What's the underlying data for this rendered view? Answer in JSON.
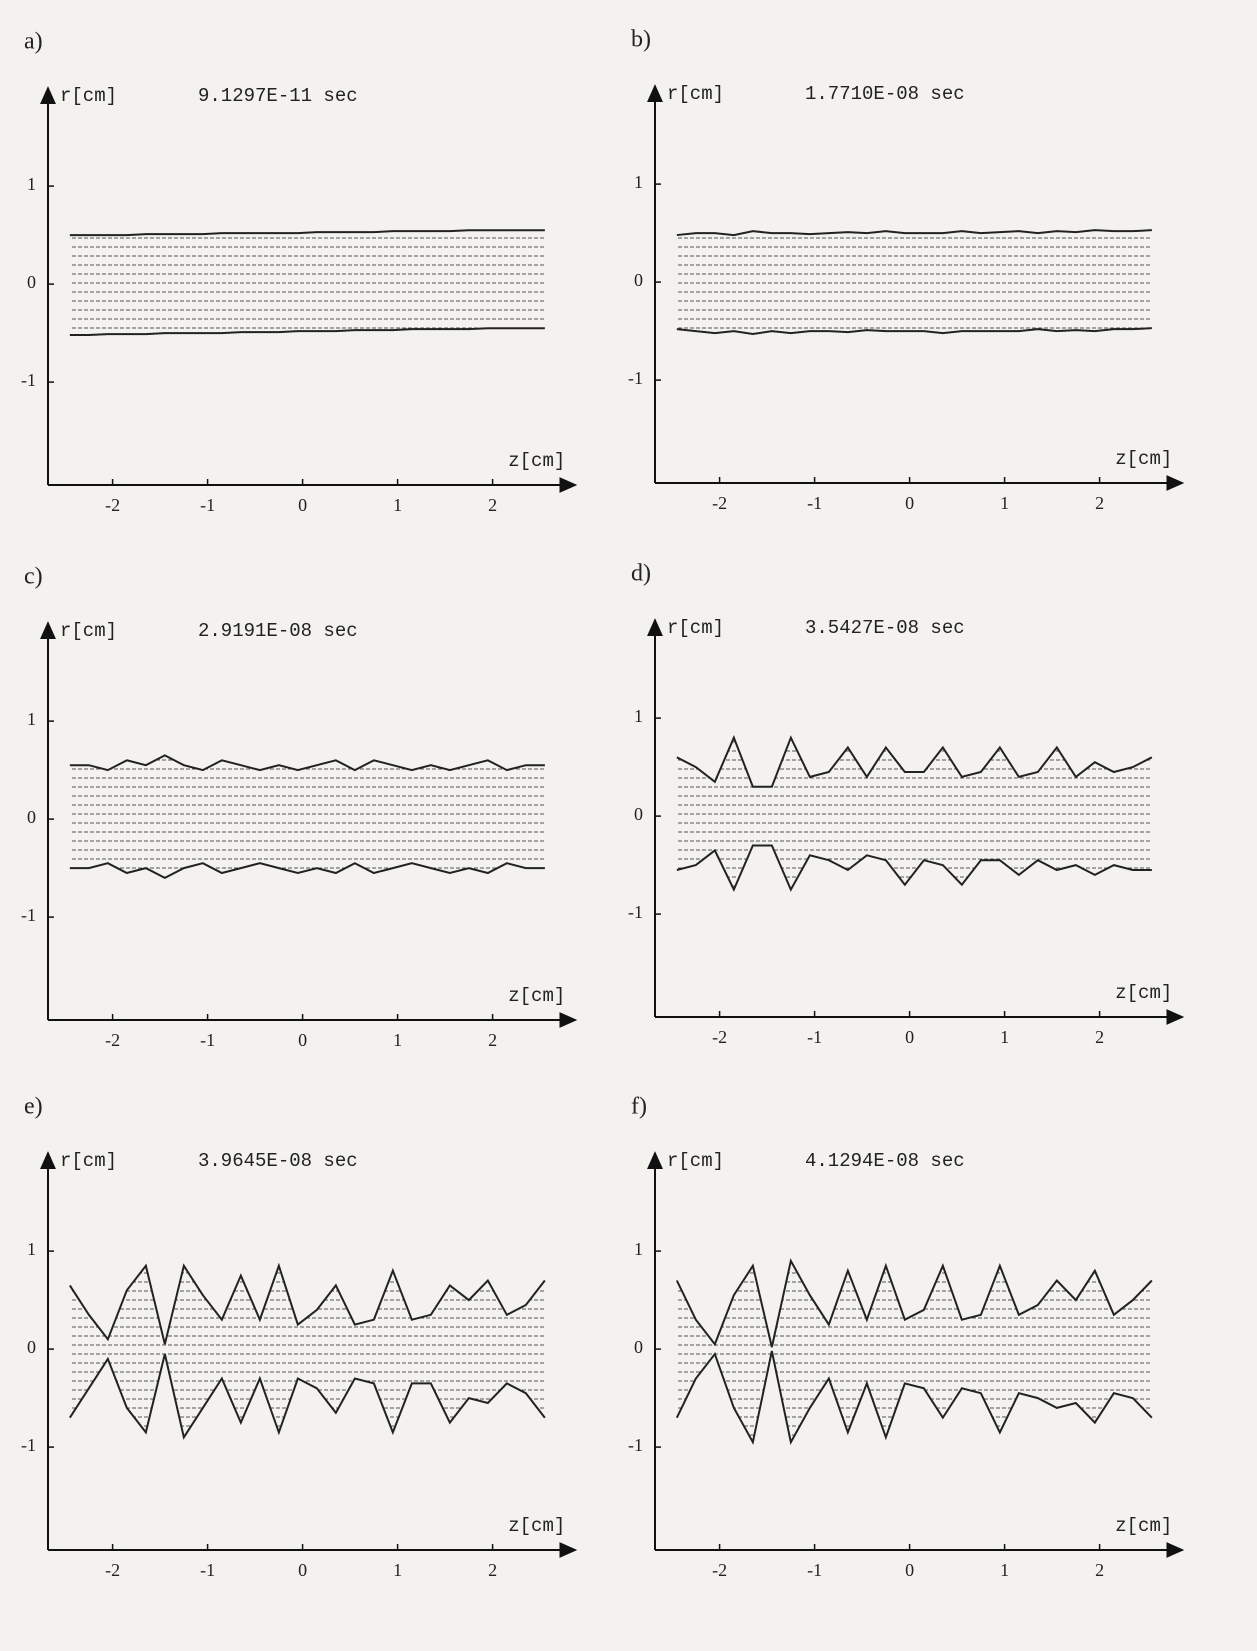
{
  "chart_data": [
    {
      "type": "area",
      "panel_label": "a)",
      "title": "9.1297E-11 sec",
      "y_label": "r[cm]",
      "x_label": "z[cm]",
      "x": [
        -2.45,
        -2.25,
        -2.05,
        -1.85,
        -1.65,
        -1.45,
        -1.25,
        -1.05,
        -0.85,
        -0.65,
        -0.45,
        -0.25,
        -0.05,
        0.15,
        0.35,
        0.55,
        0.75,
        0.95,
        1.15,
        1.35,
        1.55,
        1.75,
        1.95,
        2.15,
        2.35,
        2.55
      ],
      "series": [
        {
          "color": "#222222",
          "values": [
            0.5,
            0.5,
            0.5,
            0.5,
            0.51,
            0.51,
            0.51,
            0.51,
            0.52,
            0.52,
            0.52,
            0.52,
            0.52,
            0.53,
            0.53,
            0.53,
            0.53,
            0.54,
            0.54,
            0.54,
            0.54,
            0.55,
            0.55,
            0.55,
            0.55,
            0.55
          ]
        },
        {
          "color": "#222222",
          "values": [
            -0.52,
            -0.52,
            -0.51,
            -0.51,
            -0.51,
            -0.5,
            -0.5,
            -0.5,
            -0.5,
            -0.49,
            -0.49,
            -0.49,
            -0.48,
            -0.48,
            -0.48,
            -0.47,
            -0.47,
            -0.47,
            -0.46,
            -0.46,
            -0.46,
            -0.46,
            -0.45,
            -0.45,
            -0.45,
            -0.45
          ]
        }
      ],
      "xlim": [
        -2.68,
        2.87
      ],
      "ylim": [
        -2.05,
        2.0
      ],
      "xticks": [
        -2,
        -1,
        0,
        1,
        2
      ],
      "yticks": [
        -1,
        0,
        1
      ]
    },
    {
      "type": "area",
      "panel_label": "b)",
      "title": "1.7710E-08 sec",
      "y_label": "r[cm]",
      "x_label": "z[cm]",
      "x": [
        -2.45,
        -2.25,
        -2.05,
        -1.85,
        -1.65,
        -1.45,
        -1.25,
        -1.05,
        -0.85,
        -0.65,
        -0.45,
        -0.25,
        -0.05,
        0.15,
        0.35,
        0.55,
        0.75,
        0.95,
        1.15,
        1.35,
        1.55,
        1.75,
        1.95,
        2.15,
        2.35,
        2.55
      ],
      "series": [
        {
          "color": "#222222",
          "values": [
            0.48,
            0.5,
            0.5,
            0.48,
            0.52,
            0.5,
            0.5,
            0.49,
            0.5,
            0.51,
            0.5,
            0.52,
            0.5,
            0.5,
            0.5,
            0.52,
            0.5,
            0.51,
            0.52,
            0.5,
            0.52,
            0.51,
            0.53,
            0.52,
            0.52,
            0.53
          ]
        },
        {
          "color": "#222222",
          "values": [
            -0.48,
            -0.5,
            -0.52,
            -0.5,
            -0.53,
            -0.5,
            -0.52,
            -0.5,
            -0.5,
            -0.51,
            -0.49,
            -0.5,
            -0.5,
            -0.5,
            -0.52,
            -0.5,
            -0.5,
            -0.5,
            -0.5,
            -0.48,
            -0.5,
            -0.49,
            -0.5,
            -0.48,
            -0.48,
            -0.47
          ]
        }
      ],
      "xlim": [
        -2.68,
        2.87
      ],
      "ylim": [
        -2.05,
        2.0
      ],
      "xticks": [
        -2,
        -1,
        0,
        1,
        2
      ],
      "yticks": [
        -1,
        0,
        1
      ]
    },
    {
      "type": "area",
      "panel_label": "c)",
      "title": "2.9191E-08 sec",
      "y_label": "r[cm]",
      "x_label": "z[cm]",
      "x": [
        -2.45,
        -2.25,
        -2.05,
        -1.85,
        -1.65,
        -1.45,
        -1.25,
        -1.05,
        -0.85,
        -0.65,
        -0.45,
        -0.25,
        -0.05,
        0.15,
        0.35,
        0.55,
        0.75,
        0.95,
        1.15,
        1.35,
        1.55,
        1.75,
        1.95,
        2.15,
        2.35,
        2.55
      ],
      "series": [
        {
          "color": "#222222",
          "values": [
            0.55,
            0.55,
            0.5,
            0.6,
            0.55,
            0.65,
            0.55,
            0.5,
            0.6,
            0.55,
            0.5,
            0.55,
            0.5,
            0.55,
            0.6,
            0.5,
            0.6,
            0.55,
            0.5,
            0.55,
            0.5,
            0.55,
            0.6,
            0.5,
            0.55,
            0.55
          ]
        },
        {
          "color": "#222222",
          "values": [
            -0.5,
            -0.5,
            -0.45,
            -0.55,
            -0.5,
            -0.6,
            -0.5,
            -0.45,
            -0.55,
            -0.5,
            -0.45,
            -0.5,
            -0.55,
            -0.5,
            -0.55,
            -0.45,
            -0.55,
            -0.5,
            -0.45,
            -0.5,
            -0.55,
            -0.5,
            -0.55,
            -0.45,
            -0.5,
            -0.5
          ]
        }
      ],
      "xlim": [
        -2.68,
        2.87
      ],
      "ylim": [
        -2.05,
        2.0
      ],
      "xticks": [
        -2,
        -1,
        0,
        1,
        2
      ],
      "yticks": [
        -1,
        0,
        1
      ]
    },
    {
      "type": "area",
      "panel_label": "d)",
      "title": "3.5427E-08 sec",
      "y_label": "r[cm]",
      "x_label": "z[cm]",
      "x": [
        -2.45,
        -2.25,
        -2.05,
        -1.85,
        -1.65,
        -1.45,
        -1.25,
        -1.05,
        -0.85,
        -0.65,
        -0.45,
        -0.25,
        -0.05,
        0.15,
        0.35,
        0.55,
        0.75,
        0.95,
        1.15,
        1.35,
        1.55,
        1.75,
        1.95,
        2.15,
        2.35,
        2.55
      ],
      "series": [
        {
          "color": "#222222",
          "values": [
            0.6,
            0.5,
            0.35,
            0.8,
            0.3,
            0.3,
            0.8,
            0.4,
            0.45,
            0.7,
            0.4,
            0.7,
            0.45,
            0.45,
            0.7,
            0.4,
            0.45,
            0.7,
            0.4,
            0.45,
            0.7,
            0.4,
            0.55,
            0.45,
            0.5,
            0.6
          ]
        },
        {
          "color": "#222222",
          "values": [
            -0.55,
            -0.5,
            -0.35,
            -0.75,
            -0.3,
            -0.3,
            -0.75,
            -0.4,
            -0.45,
            -0.55,
            -0.4,
            -0.45,
            -0.7,
            -0.45,
            -0.5,
            -0.7,
            -0.45,
            -0.45,
            -0.6,
            -0.45,
            -0.55,
            -0.5,
            -0.6,
            -0.5,
            -0.55,
            -0.55
          ]
        }
      ],
      "xlim": [
        -2.68,
        2.87
      ],
      "ylim": [
        -2.05,
        2.0
      ],
      "xticks": [
        -2,
        -1,
        0,
        1,
        2
      ],
      "yticks": [
        -1,
        0,
        1
      ]
    },
    {
      "type": "area",
      "panel_label": "e)",
      "title": "3.9645E-08 sec",
      "y_label": "r[cm]",
      "x_label": "z[cm]",
      "x": [
        -2.45,
        -2.25,
        -2.05,
        -1.85,
        -1.65,
        -1.45,
        -1.25,
        -1.05,
        -0.85,
        -0.65,
        -0.45,
        -0.25,
        -0.05,
        0.15,
        0.35,
        0.55,
        0.75,
        0.95,
        1.15,
        1.35,
        1.55,
        1.75,
        1.95,
        2.15,
        2.35,
        2.55
      ],
      "series": [
        {
          "color": "#222222",
          "values": [
            0.65,
            0.35,
            0.1,
            0.6,
            0.85,
            0.05,
            0.85,
            0.55,
            0.3,
            0.75,
            0.3,
            0.85,
            0.25,
            0.4,
            0.65,
            0.25,
            0.3,
            0.8,
            0.3,
            0.35,
            0.65,
            0.5,
            0.7,
            0.35,
            0.45,
            0.7
          ]
        },
        {
          "color": "#222222",
          "values": [
            -0.7,
            -0.4,
            -0.1,
            -0.6,
            -0.85,
            -0.05,
            -0.9,
            -0.6,
            -0.3,
            -0.75,
            -0.3,
            -0.85,
            -0.3,
            -0.4,
            -0.65,
            -0.3,
            -0.35,
            -0.85,
            -0.35,
            -0.35,
            -0.75,
            -0.5,
            -0.55,
            -0.35,
            -0.45,
            -0.7
          ]
        }
      ],
      "xlim": [
        -2.68,
        2.87
      ],
      "ylim": [
        -2.05,
        2.0
      ],
      "xticks": [
        -2,
        -1,
        0,
        1,
        2
      ],
      "yticks": [
        -1,
        0,
        1
      ]
    },
    {
      "type": "area",
      "panel_label": "f)",
      "title": "4.1294E-08 sec",
      "y_label": "r[cm]",
      "x_label": "z[cm]",
      "x": [
        -2.45,
        -2.25,
        -2.05,
        -1.85,
        -1.65,
        -1.45,
        -1.25,
        -1.05,
        -0.85,
        -0.65,
        -0.45,
        -0.25,
        -0.05,
        0.15,
        0.35,
        0.55,
        0.75,
        0.95,
        1.15,
        1.35,
        1.55,
        1.75,
        1.95,
        2.15,
        2.35,
        2.55
      ],
      "series": [
        {
          "color": "#222222",
          "values": [
            0.7,
            0.3,
            0.05,
            0.55,
            0.85,
            0.02,
            0.9,
            0.55,
            0.25,
            0.8,
            0.3,
            0.85,
            0.3,
            0.4,
            0.85,
            0.3,
            0.35,
            0.85,
            0.35,
            0.45,
            0.7,
            0.5,
            0.8,
            0.35,
            0.5,
            0.7
          ]
        },
        {
          "color": "#222222",
          "values": [
            -0.7,
            -0.3,
            -0.05,
            -0.6,
            -0.95,
            -0.02,
            -0.95,
            -0.6,
            -0.3,
            -0.85,
            -0.35,
            -0.9,
            -0.35,
            -0.4,
            -0.7,
            -0.4,
            -0.45,
            -0.85,
            -0.45,
            -0.5,
            -0.6,
            -0.55,
            -0.75,
            -0.45,
            -0.5,
            -0.7
          ]
        }
      ],
      "xlim": [
        -2.68,
        2.87
      ],
      "ylim": [
        -2.05,
        2.0
      ],
      "xticks": [
        -2,
        -1,
        0,
        1,
        2
      ],
      "yticks": [
        -1,
        0,
        1
      ]
    }
  ]
}
